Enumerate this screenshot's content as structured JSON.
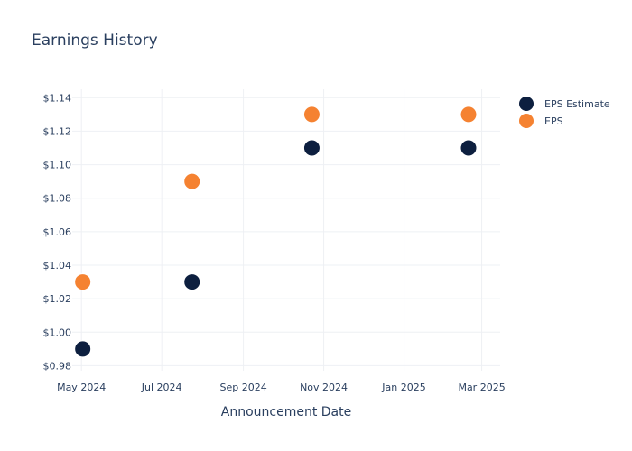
{
  "chart_data": {
    "type": "scatter",
    "title": "Earnings History",
    "xlabel": "Announcement Date",
    "ylabel": "",
    "x_ticks": [
      "May 2024",
      "Jul 2024",
      "Sep 2024",
      "Nov 2024",
      "Jan 2025",
      "Mar 2025"
    ],
    "y_ticks": [
      "$0.98",
      "$1.00",
      "$1.02",
      "$1.04",
      "$1.06",
      "$1.08",
      "$1.10",
      "$1.12",
      "$1.14"
    ],
    "ylim": [
      0.977,
      1.145
    ],
    "xlim": [
      "2024-04-24",
      "2025-03-15"
    ],
    "grid": true,
    "legend_position": "top-right",
    "series": [
      {
        "name": "EPS Estimate",
        "color": "#0d1f3f",
        "points": [
          {
            "x": "2024-05-02",
            "y": 0.99
          },
          {
            "x": "2024-07-24",
            "y": 1.03
          },
          {
            "x": "2024-10-23",
            "y": 1.11
          },
          {
            "x": "2025-02-19",
            "y": 1.11
          }
        ]
      },
      {
        "name": "EPS",
        "color": "#f58231",
        "points": [
          {
            "x": "2024-05-02",
            "y": 1.03
          },
          {
            "x": "2024-07-24",
            "y": 1.09
          },
          {
            "x": "2024-10-23",
            "y": 1.13
          },
          {
            "x": "2025-02-19",
            "y": 1.13
          }
        ]
      }
    ]
  }
}
